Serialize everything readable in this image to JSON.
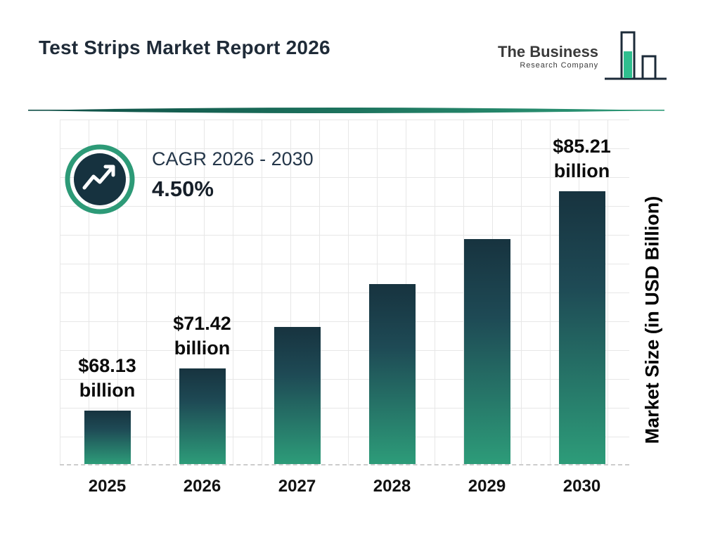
{
  "header": {
    "title": "Test Strips Market Report 2026",
    "logo": {
      "line1": "The Business",
      "line2": "Research Company"
    }
  },
  "cagr": {
    "label": "CAGR 2026 - 2030",
    "value": "4.50%"
  },
  "colors": {
    "title_navy": "#1f2b38",
    "bar_gradient_top": "#17333f",
    "bar_gradient_bottom": "#2d9c79",
    "accent_green": "#2d9a77",
    "logo_green": "#2fbf8f",
    "grid_gray": "#e7e7e7"
  },
  "chart_data": {
    "type": "bar",
    "title": "Test Strips Market Report 2026",
    "categories": [
      "2025",
      "2026",
      "2027",
      "2028",
      "2029",
      "2030"
    ],
    "values": [
      68.13,
      71.42,
      74.63,
      77.99,
      81.5,
      85.21
    ],
    "ylabel": "Market Size (in USD Billion)",
    "xlabel": "",
    "grid": true,
    "legend": false,
    "bars": [
      {
        "year": "2025",
        "value": 68.13,
        "labeled": true,
        "label_value": "$68.13",
        "label_unit": "billion"
      },
      {
        "year": "2026",
        "value": 71.42,
        "labeled": true,
        "label_value": "$71.42",
        "label_unit": "billion"
      },
      {
        "year": "2027",
        "value": 74.63,
        "labeled": false,
        "estimated": true
      },
      {
        "year": "2028",
        "value": 77.99,
        "labeled": false,
        "estimated": true
      },
      {
        "year": "2029",
        "value": 81.5,
        "labeled": false,
        "estimated": true
      },
      {
        "year": "2030",
        "value": 85.21,
        "labeled": true,
        "label_value": "$85.21",
        "label_unit": "billion"
      }
    ]
  }
}
